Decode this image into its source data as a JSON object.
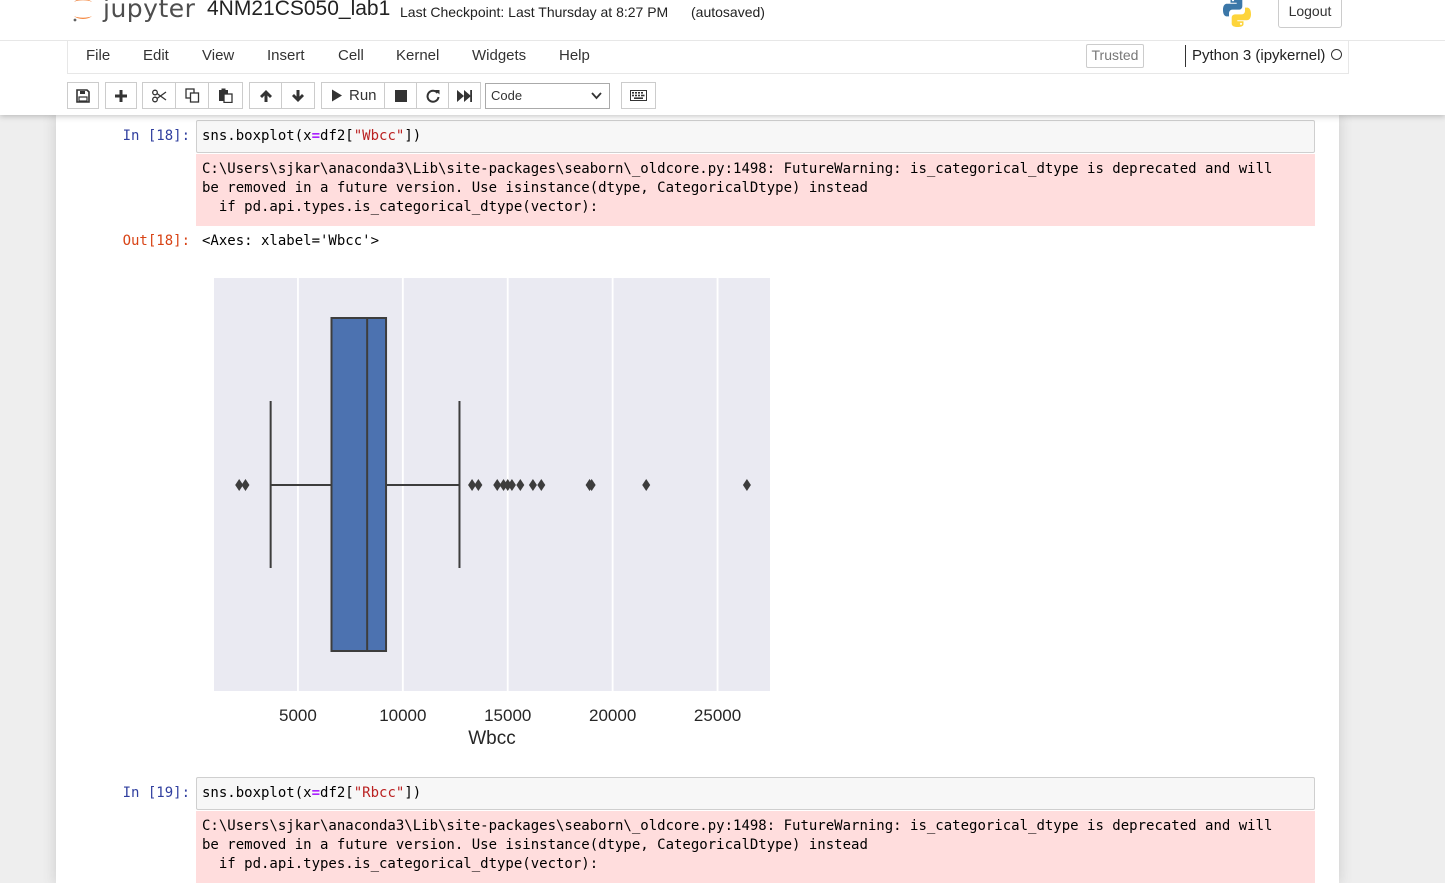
{
  "header": {
    "logo_text": "jupyter",
    "notebook_title": "4NM21CS050_lab1",
    "checkpoint": "Last Checkpoint: Last Thursday at 8:27 PM",
    "autosave": "(autosaved)",
    "logout_label": "Logout"
  },
  "menubar": {
    "items": [
      "File",
      "Edit",
      "View",
      "Insert",
      "Cell",
      "Kernel",
      "Widgets",
      "Help"
    ],
    "trusted_label": "Trusted",
    "kernel_label": "Python 3 (ipykernel)"
  },
  "toolbar": {
    "run_label": "Run",
    "cell_type": "Code",
    "icons": [
      "save-icon",
      "plus-icon",
      "cut-icon",
      "copy-icon",
      "paste-icon",
      "arrow-up-icon",
      "arrow-down-icon",
      "play-icon",
      "stop-icon",
      "restart-icon",
      "fast-forward-icon",
      "keyboard-icon"
    ]
  },
  "cells": [
    {
      "in_prompt": "In [18]:",
      "code_pre": "sns.boxplot(x",
      "code_op": "=",
      "code_mid": "df2[",
      "code_str": "\"Wbcc\"",
      "code_post": "])",
      "stderr": "C:\\Users\\sjkar\\anaconda3\\Lib\\site-packages\\seaborn\\_oldcore.py:1498: FutureWarning: is_categorical_dtype is deprecated and will\nbe removed in a future version. Use isinstance(dtype, CategoricalDtype) instead\n  if pd.api.types.is_categorical_dtype(vector):",
      "out_prompt": "Out[18]:",
      "out_text": "<Axes: xlabel='Wbcc'>"
    },
    {
      "in_prompt": "In [19]:",
      "code_pre": "sns.boxplot(x",
      "code_op": "=",
      "code_mid": "df2[",
      "code_str": "\"Rbcc\"",
      "code_post": "])",
      "stderr": "C:\\Users\\sjkar\\anaconda3\\Lib\\site-packages\\seaborn\\_oldcore.py:1498: FutureWarning: is_categorical_dtype is deprecated and will\nbe removed in a future version. Use isinstance(dtype, CategoricalDtype) instead\n  if pd.api.types.is_categorical_dtype(vector):"
    }
  ],
  "chart_data": {
    "type": "box",
    "xlabel": "Wbcc",
    "xlim": [
      1000,
      27500
    ],
    "xticks": [
      5000,
      10000,
      15000,
      20000,
      25000
    ],
    "grid": true,
    "box_color": "#4c72b0",
    "background": "#eaeaf2",
    "whisker_low": 3700,
    "q1": 6600,
    "median": 8300,
    "q3": 9200,
    "whisker_high": 12700,
    "outliers": [
      2200,
      2500,
      13300,
      13600,
      14500,
      14800,
      15000,
      15200,
      15600,
      16200,
      16600,
      18900,
      19000,
      21600,
      26400
    ]
  }
}
